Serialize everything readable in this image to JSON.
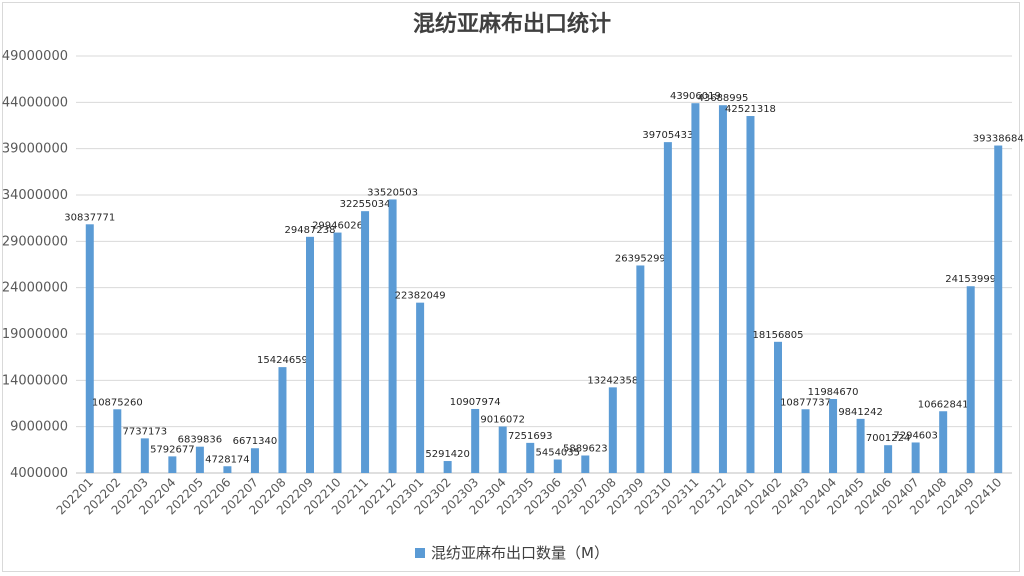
{
  "chart_data": {
    "type": "bar",
    "title": "混纺亚麻布出口统计",
    "xlabel": "",
    "ylabel": "",
    "ylim": [
      4000000,
      49000000
    ],
    "yticks": [
      4000000,
      9000000,
      14000000,
      19000000,
      24000000,
      29000000,
      34000000,
      39000000,
      44000000,
      49000000
    ],
    "grid": true,
    "legend_position": "bottom",
    "color": "#5b9bd5",
    "categories": [
      "202201",
      "202202",
      "202203",
      "202204",
      "202205",
      "202206",
      "202207",
      "202208",
      "202209",
      "202210",
      "202211",
      "202212",
      "202301",
      "202302",
      "202303",
      "202304",
      "202305",
      "202306",
      "202307",
      "202308",
      "202309",
      "202310",
      "202311",
      "202312",
      "202401",
      "202402",
      "202403",
      "202404",
      "202405",
      "202406",
      "202407",
      "202408",
      "202409",
      "202410"
    ],
    "series": [
      {
        "name": "混纺亚麻布出口数量（M）",
        "values": [
          30837771,
          10875260,
          7737173,
          5792677,
          6839836,
          4728174,
          6671340,
          15424659,
          29487238,
          29946026,
          32255034,
          33520503,
          22382049,
          5291420,
          10907974,
          9016072,
          7251693,
          5454035,
          5889623,
          13242358,
          26395299,
          39705433,
          43906019,
          43688995,
          42521318,
          18156805,
          10877737,
          11984670,
          9841242,
          7001224,
          7294603,
          10662841,
          24153999,
          39338684
        ]
      }
    ]
  }
}
